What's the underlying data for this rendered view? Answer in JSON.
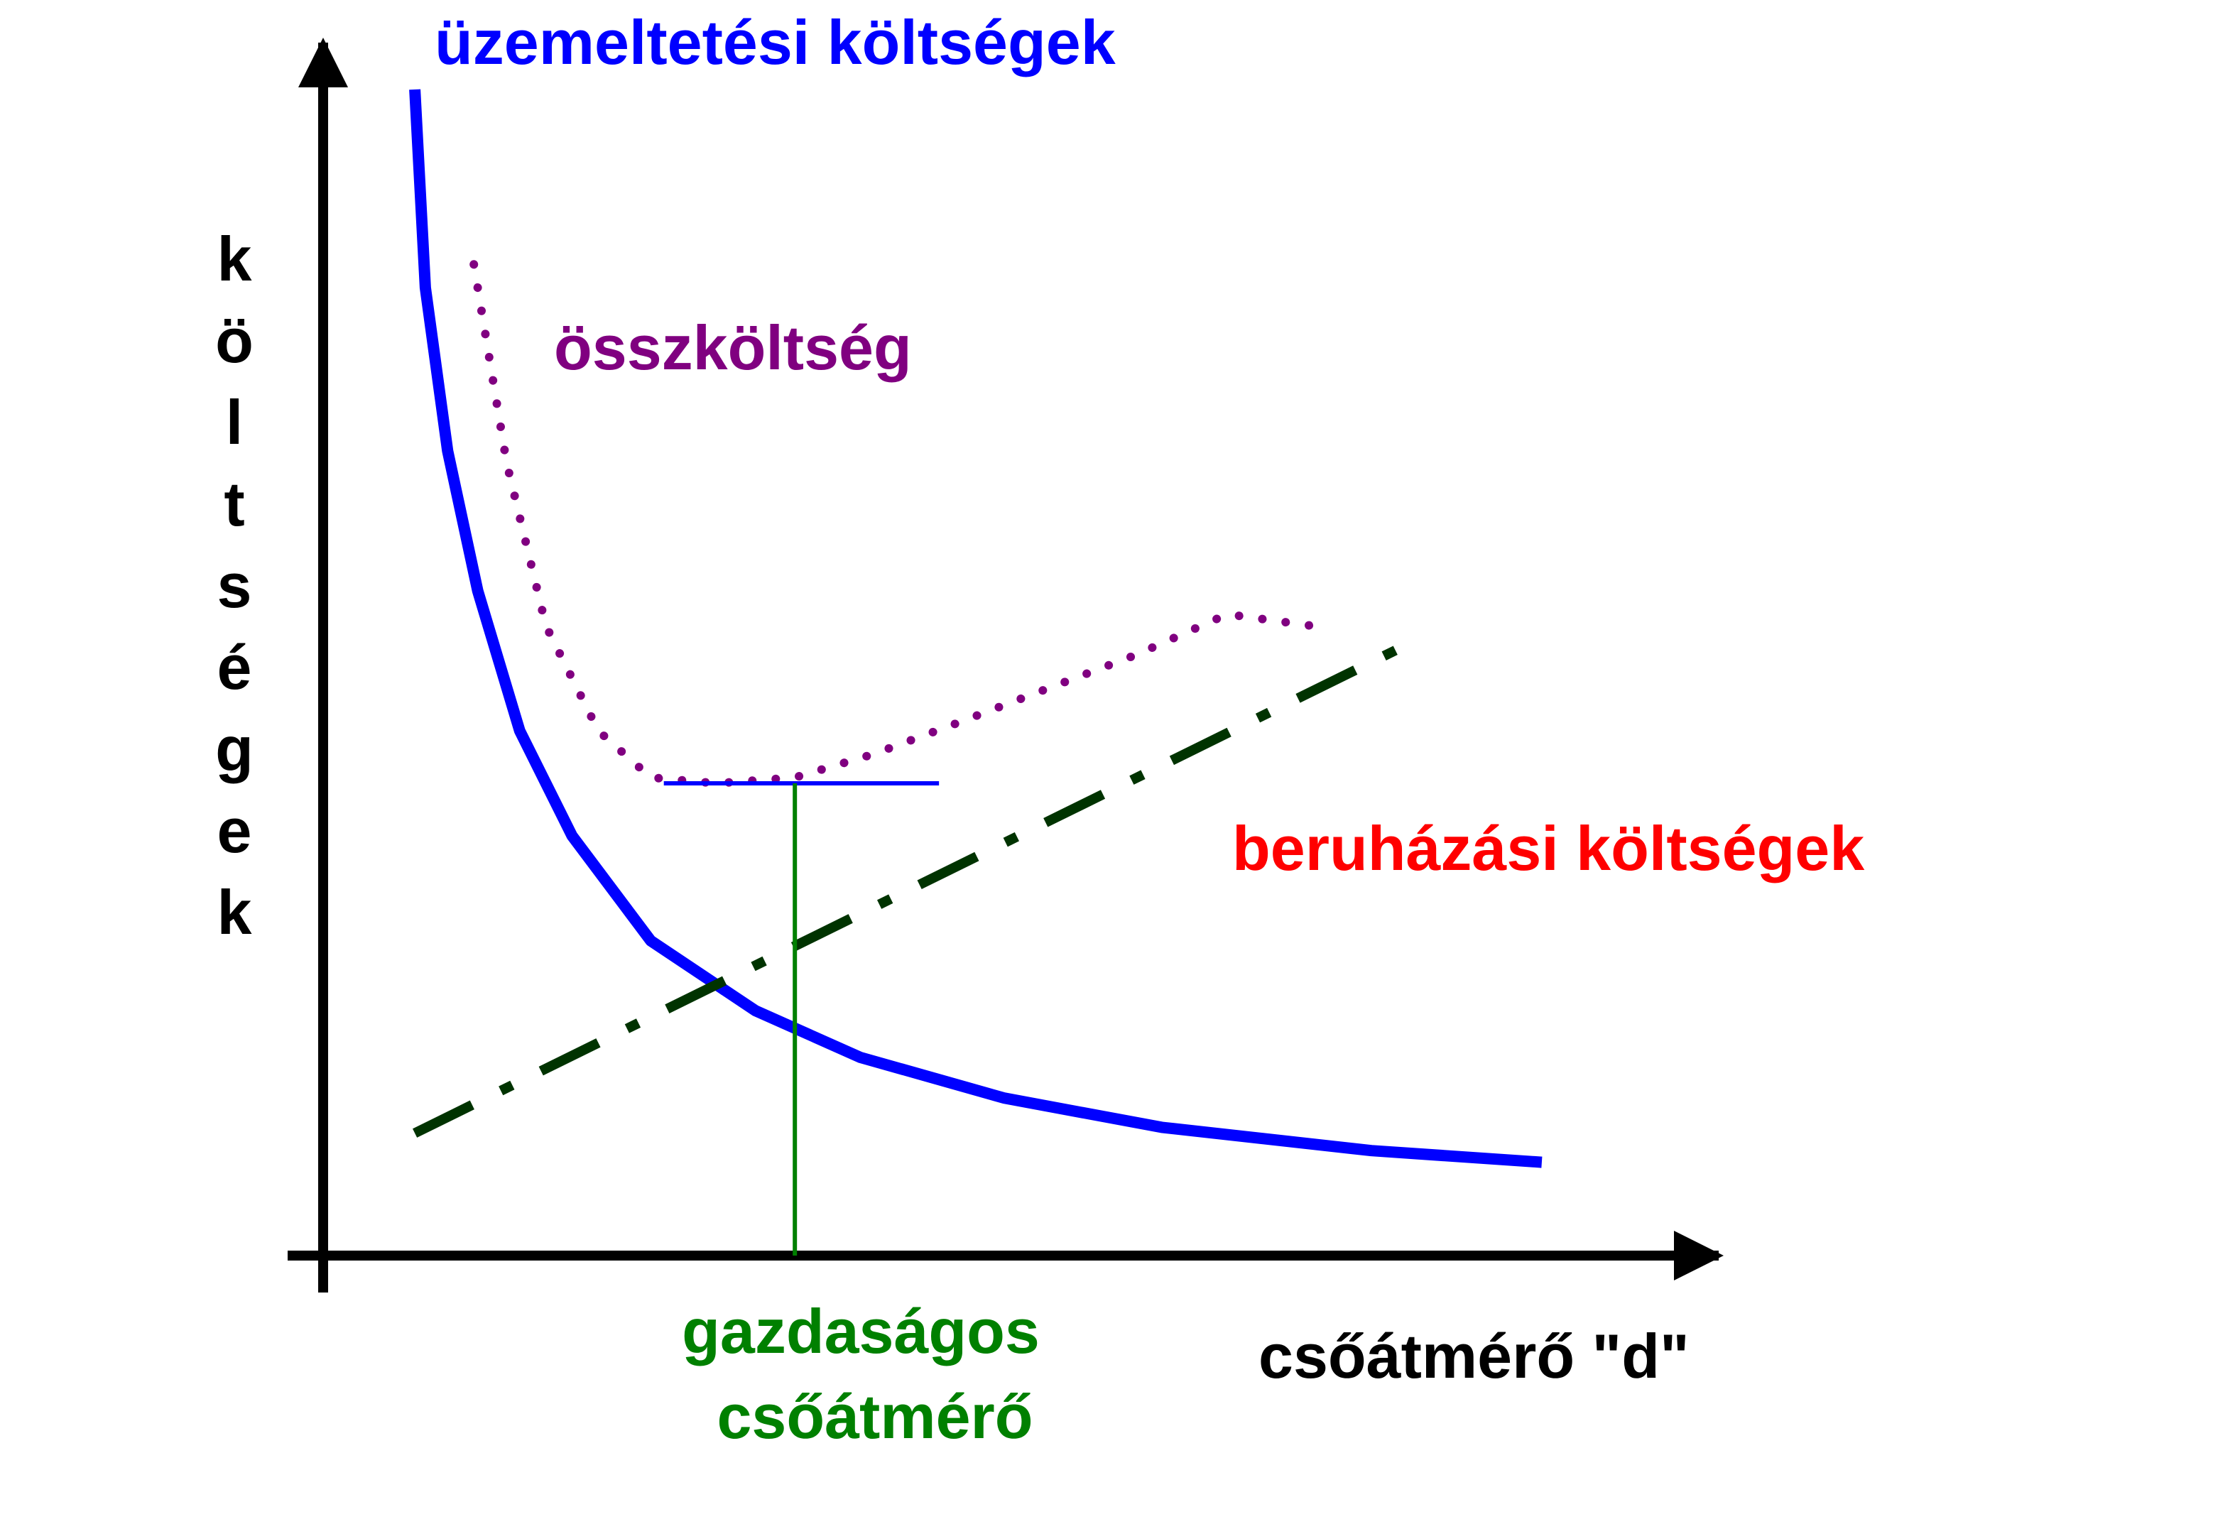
{
  "chart_data": {
    "type": "line",
    "title": "",
    "xlabel": "csőátmérő \"d\"",
    "ylabel": "költségek",
    "xlim": [
      0,
      100
    ],
    "ylim": [
      0,
      100
    ],
    "grid": false,
    "legend": "none",
    "colors": {
      "operating": "#0000ff",
      "investment": "#003300",
      "total": "#800080",
      "optimum": "#008000",
      "axes": "#000000",
      "investment_label": "#ff0000"
    },
    "series": [
      {
        "key": "operating",
        "name": "üzemeltetési költségek",
        "style": "solid",
        "x": [
          7,
          7.8,
          9.5,
          11.8,
          15,
          19,
          25,
          33,
          41,
          52,
          64,
          80,
          93
        ],
        "y": [
          100,
          83,
          69,
          57,
          45,
          36,
          27,
          21,
          17,
          13.5,
          11,
          9,
          8
        ]
      },
      {
        "key": "investment",
        "name": "beruházási költségek",
        "style": "dashdot",
        "x": [
          7,
          82
        ],
        "y": [
          10.5,
          52
        ]
      },
      {
        "key": "total",
        "name": "összköltség",
        "style": "dotted",
        "x": [
          11.5,
          14,
          17,
          21,
          25,
          30,
          36,
          42,
          48,
          55,
          62,
          69,
          75.5
        ],
        "y": [
          85,
          68,
          54,
          45,
          41,
          40.5,
          41,
          43,
          45.5,
          48.5,
          51.5,
          55,
          54
        ]
      }
    ],
    "optimum": {
      "label_line1": "gazdaságos",
      "label_line2": "csőátmérő",
      "x": 36,
      "y": 40.5,
      "hline_x": [
        26,
        47
      ]
    }
  }
}
